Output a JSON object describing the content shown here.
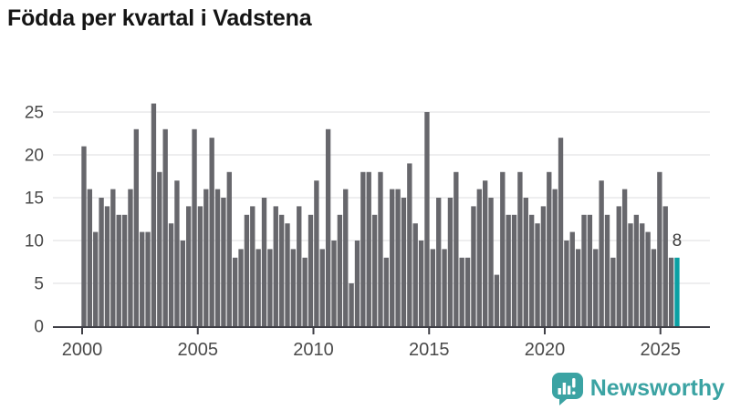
{
  "title": "Födda per kvartal i Vadstena",
  "chart_data": {
    "type": "bar",
    "title": "Födda per kvartal i Vadstena",
    "x_unit": "quarter",
    "start_period": "2000-Q1",
    "end_period": "2025-Q3",
    "values": [
      21,
      16,
      11,
      15,
      14,
      16,
      13,
      13,
      16,
      23,
      11,
      11,
      26,
      18,
      23,
      12,
      17,
      10,
      14,
      23,
      14,
      16,
      22,
      16,
      15,
      18,
      8,
      9,
      13,
      14,
      9,
      15,
      9,
      14,
      13,
      12,
      9,
      14,
      8,
      13,
      17,
      9,
      23,
      10,
      13,
      16,
      5,
      10,
      18,
      18,
      13,
      18,
      8,
      16,
      16,
      15,
      19,
      12,
      10,
      25,
      9,
      15,
      9,
      15,
      18,
      8,
      8,
      14,
      16,
      17,
      15,
      6,
      18,
      13,
      13,
      18,
      15,
      13,
      12,
      14,
      18,
      16,
      22,
      10,
      11,
      9,
      13,
      13,
      9,
      17,
      13,
      8,
      14,
      16,
      12,
      13,
      12,
      11,
      9,
      18,
      14,
      8,
      8
    ],
    "highlight_index": 102,
    "annotation": {
      "text": "8"
    },
    "ylim": [
      0,
      25
    ],
    "ytick_labels": [
      "0",
      "5",
      "10",
      "15",
      "20",
      "25"
    ],
    "xtick_labels": [
      "2000",
      "2005",
      "2010",
      "2015",
      "2020",
      "2025"
    ],
    "xtick_years": [
      2000,
      2005,
      2010,
      2015,
      2020,
      2025
    ],
    "grid": true,
    "legend": "none",
    "colors": {
      "bar": "#67676c",
      "highlight": "#0aa0a3",
      "grid_line": "#e8e8ea",
      "axis_line": "#3f3f46",
      "tick_label": "#4a4a4a",
      "annotation": "#3a3a3a",
      "title": "#141414"
    }
  },
  "footer": {
    "brand": "Newsworthy",
    "brand_color": "#3ba3a3"
  }
}
